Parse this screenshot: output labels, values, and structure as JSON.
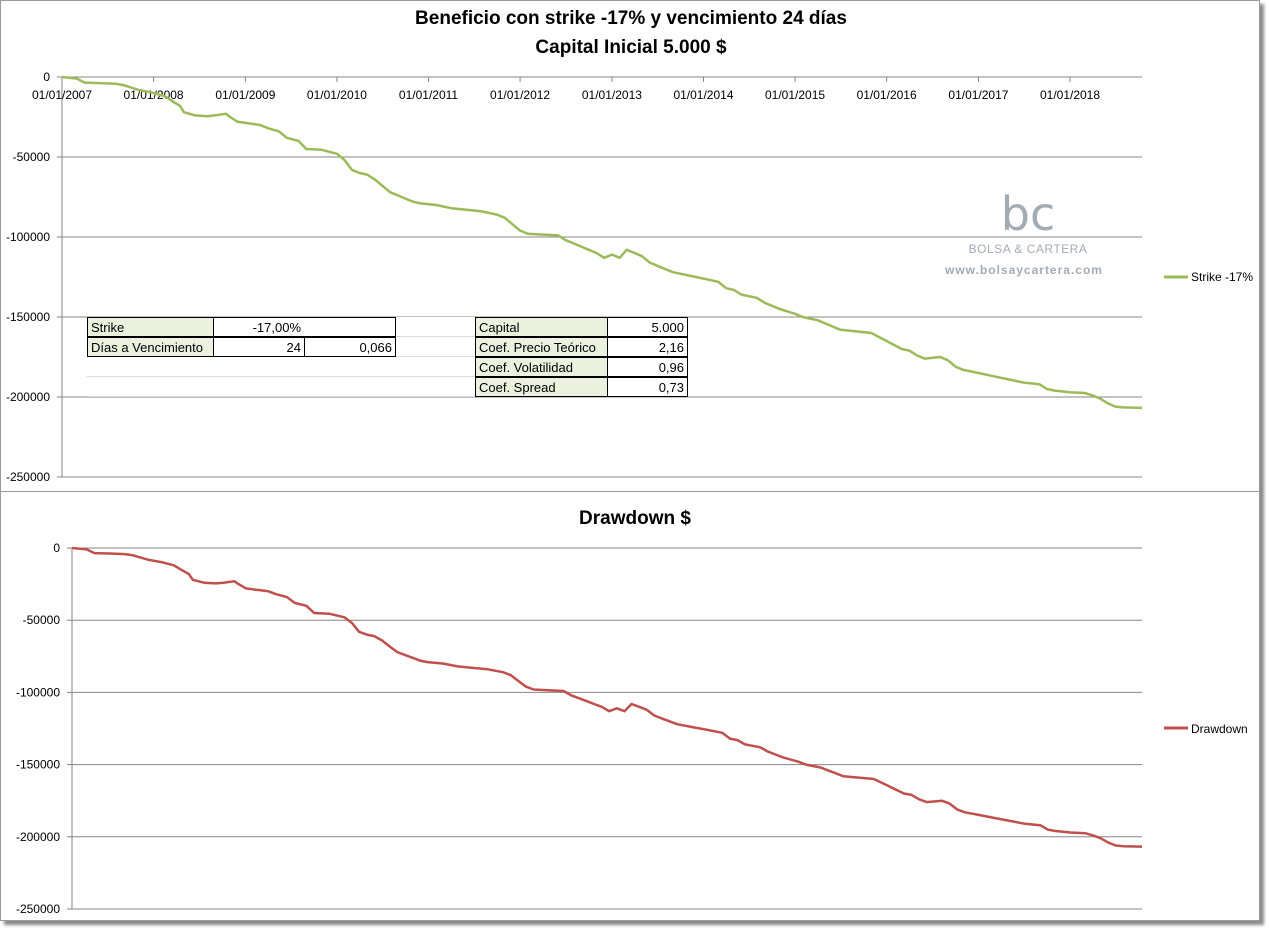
{
  "colors": {
    "strike_line": "#9bbb59",
    "drawdown_line": "#c0504d",
    "gridline": "#868686"
  },
  "chart_data": [
    {
      "type": "line",
      "title": "Beneficio con strike -17% y vencimiento 24 días",
      "subtitle": "Capital Inicial 5.000 $",
      "x_tick_labels": [
        "01/01/2007",
        "01/01/2008",
        "01/01/2009",
        "01/01/2010",
        "01/01/2011",
        "01/01/2012",
        "01/01/2013",
        "01/01/2014",
        "01/01/2015",
        "01/01/2016",
        "01/01/2017",
        "01/01/2018"
      ],
      "y_tick_labels": [
        "0",
        "-50000",
        "-100000",
        "-150000",
        "-200000",
        "-250000"
      ],
      "ylim": [
        -250000,
        0
      ],
      "xlim": [
        "2007-01-01",
        "2018-10-15"
      ],
      "grid": true,
      "legend_position": "right",
      "series": [
        {
          "name": "Strike -17%",
          "x": [
            "2007-01-01",
            "2007-03-01",
            "2007-04-01",
            "2007-06-01",
            "2007-08-01",
            "2007-09-01",
            "2007-11-01",
            "2008-01-01",
            "2008-02-15",
            "2008-03-15",
            "2008-04-15",
            "2008-05-01",
            "2008-06-15",
            "2008-08-01",
            "2008-09-01",
            "2008-10-15",
            "2008-11-01",
            "2008-12-01",
            "2009-01-15",
            "2009-03-01",
            "2009-04-01",
            "2009-05-15",
            "2009-06-15",
            "2009-08-01",
            "2009-09-01",
            "2009-11-01",
            "2010-01-01",
            "2010-02-01",
            "2010-03-01",
            "2010-04-01",
            "2010-05-01",
            "2010-06-01",
            "2010-07-01",
            "2010-08-01",
            "2010-09-01",
            "2010-10-01",
            "2010-11-01",
            "2010-12-01",
            "2011-02-01",
            "2011-04-01",
            "2011-06-01",
            "2011-08-01",
            "2011-10-01",
            "2011-11-01",
            "2011-12-01",
            "2012-01-01",
            "2012-02-01",
            "2012-04-01",
            "2012-06-01",
            "2012-07-01",
            "2012-08-01",
            "2012-09-01",
            "2012-10-01",
            "2012-11-01",
            "2012-12-01",
            "2013-01-01",
            "2013-02-01",
            "2013-03-01",
            "2013-04-01",
            "2013-05-01",
            "2013-06-01",
            "2013-07-01",
            "2013-09-01",
            "2013-11-01",
            "2014-01-01",
            "2014-03-01",
            "2014-04-01",
            "2014-05-01",
            "2014-06-01",
            "2014-07-01",
            "2014-08-01",
            "2014-09-01",
            "2014-10-01",
            "2014-11-01",
            "2015-01-01",
            "2015-02-01",
            "2015-03-01",
            "2015-04-01",
            "2015-05-01",
            "2015-06-01",
            "2015-07-01",
            "2015-09-01",
            "2015-11-01",
            "2016-01-01",
            "2016-03-01",
            "2016-04-01",
            "2016-05-01",
            "2016-06-01",
            "2016-08-01",
            "2016-09-01",
            "2016-10-01",
            "2016-11-01",
            "2016-12-01",
            "2017-01-01",
            "2017-03-01",
            "2017-05-01",
            "2017-07-01",
            "2017-08-01",
            "2017-09-01",
            "2017-10-01",
            "2017-11-01",
            "2018-01-01",
            "2018-03-01",
            "2018-04-01",
            "2018-05-01",
            "2018-06-01",
            "2018-07-01",
            "2018-08-01",
            "2018-10-15"
          ],
          "y": [
            0,
            -1000,
            -3500,
            -3800,
            -4200,
            -5000,
            -8000,
            -10000,
            -12000,
            -15000,
            -18000,
            -22000,
            -24000,
            -24500,
            -24000,
            -23000,
            -25000,
            -28000,
            -29000,
            -30000,
            -32000,
            -34000,
            -38000,
            -40000,
            -45000,
            -45500,
            -48000,
            -52000,
            -58000,
            -60000,
            -61000,
            -64000,
            -68000,
            -72000,
            -74000,
            -76000,
            -78000,
            -79000,
            -80000,
            -82000,
            -83000,
            -84000,
            -86000,
            -88000,
            -92000,
            -96000,
            -98000,
            -98500,
            -99000,
            -102000,
            -104000,
            -106000,
            -108000,
            -110000,
            -113000,
            -111000,
            -113000,
            -108000,
            -110000,
            -112000,
            -116000,
            -118000,
            -122000,
            -124000,
            -126000,
            -128000,
            -132000,
            -133000,
            -136000,
            -137000,
            -138000,
            -141000,
            -143000,
            -145000,
            -148000,
            -150000,
            -151000,
            -152000,
            -154000,
            -156000,
            -158000,
            -159000,
            -160000,
            -165000,
            -170000,
            -171000,
            -174000,
            -176000,
            -175000,
            -177000,
            -181000,
            -183000,
            -184000,
            -185000,
            -187000,
            -189000,
            -191000,
            -191500,
            -192000,
            -195000,
            -196000,
            -197000,
            -197500,
            -199000,
            -201000,
            -204000,
            -206000,
            -206500,
            -206800
          ]
        }
      ]
    },
    {
      "type": "line",
      "title": "Drawdown $",
      "y_tick_labels": [
        "0",
        "-50000",
        "-100000",
        "-150000",
        "-200000",
        "-250000"
      ],
      "ylim": [
        -250000,
        0
      ],
      "xlim": [
        "2007-01-01",
        "2018-10-15"
      ],
      "grid": true,
      "legend_position": "right",
      "series": [
        {
          "name": "Drawdown",
          "x": [
            "2007-01-01",
            "2007-03-01",
            "2007-04-01",
            "2007-06-01",
            "2007-08-01",
            "2007-09-01",
            "2007-11-01",
            "2008-01-01",
            "2008-02-15",
            "2008-03-15",
            "2008-04-15",
            "2008-05-01",
            "2008-06-15",
            "2008-08-01",
            "2008-09-01",
            "2008-10-15",
            "2008-11-01",
            "2008-12-01",
            "2009-01-15",
            "2009-03-01",
            "2009-04-01",
            "2009-05-15",
            "2009-06-15",
            "2009-08-01",
            "2009-09-01",
            "2009-11-01",
            "2010-01-01",
            "2010-02-01",
            "2010-03-01",
            "2010-04-01",
            "2010-05-01",
            "2010-06-01",
            "2010-07-01",
            "2010-08-01",
            "2010-09-01",
            "2010-10-01",
            "2010-11-01",
            "2010-12-01",
            "2011-02-01",
            "2011-04-01",
            "2011-06-01",
            "2011-08-01",
            "2011-10-01",
            "2011-11-01",
            "2011-12-01",
            "2012-01-01",
            "2012-02-01",
            "2012-04-01",
            "2012-06-01",
            "2012-07-01",
            "2012-08-01",
            "2012-09-01",
            "2012-10-01",
            "2012-11-01",
            "2012-12-01",
            "2013-01-01",
            "2013-02-01",
            "2013-03-01",
            "2013-04-01",
            "2013-05-01",
            "2013-06-01",
            "2013-07-01",
            "2013-09-01",
            "2013-11-01",
            "2014-01-01",
            "2014-03-01",
            "2014-04-01",
            "2014-05-01",
            "2014-06-01",
            "2014-07-01",
            "2014-08-01",
            "2014-09-01",
            "2014-10-01",
            "2014-11-01",
            "2015-01-01",
            "2015-02-01",
            "2015-03-01",
            "2015-04-01",
            "2015-05-01",
            "2015-06-01",
            "2015-07-01",
            "2015-09-01",
            "2015-11-01",
            "2016-01-01",
            "2016-03-01",
            "2016-04-01",
            "2016-05-01",
            "2016-06-01",
            "2016-08-01",
            "2016-09-01",
            "2016-10-01",
            "2016-11-01",
            "2016-12-01",
            "2017-01-01",
            "2017-03-01",
            "2017-05-01",
            "2017-07-01",
            "2017-08-01",
            "2017-09-01",
            "2017-10-01",
            "2017-11-01",
            "2018-01-01",
            "2018-03-01",
            "2018-04-01",
            "2018-05-01",
            "2018-06-01",
            "2018-07-01",
            "2018-08-01",
            "2018-10-15"
          ],
          "y": [
            0,
            -1000,
            -3500,
            -3800,
            -4200,
            -5000,
            -8000,
            -10000,
            -12000,
            -15000,
            -18000,
            -22000,
            -24000,
            -24500,
            -24000,
            -23000,
            -25000,
            -28000,
            -29000,
            -30000,
            -32000,
            -34000,
            -38000,
            -40000,
            -45000,
            -45500,
            -48000,
            -52000,
            -58000,
            -60000,
            -61000,
            -64000,
            -68000,
            -72000,
            -74000,
            -76000,
            -78000,
            -79000,
            -80000,
            -82000,
            -83000,
            -84000,
            -86000,
            -88000,
            -92000,
            -96000,
            -98000,
            -98500,
            -99000,
            -102000,
            -104000,
            -106000,
            -108000,
            -110000,
            -113000,
            -111000,
            -113000,
            -108000,
            -110000,
            -112000,
            -116000,
            -118000,
            -122000,
            -124000,
            -126000,
            -128000,
            -132000,
            -133000,
            -136000,
            -137000,
            -138000,
            -141000,
            -143000,
            -145000,
            -148000,
            -150000,
            -151000,
            -152000,
            -154000,
            -156000,
            -158000,
            -159000,
            -160000,
            -165000,
            -170000,
            -171000,
            -174000,
            -176000,
            -175000,
            -177000,
            -181000,
            -183000,
            -184000,
            -185000,
            -187000,
            -189000,
            -191000,
            -191500,
            -192000,
            -195000,
            -196000,
            -197000,
            -197500,
            -199000,
            -201000,
            -204000,
            -206000,
            -206500,
            -206800
          ]
        }
      ]
    }
  ],
  "parameters_table_left": [
    {
      "label": "Strike",
      "value": "-17,00%",
      "extra": ""
    },
    {
      "label": "Días a Vencimiento",
      "value": "24",
      "extra": "0,066"
    }
  ],
  "parameters_table_right": [
    {
      "label": "Capital",
      "value": "5.000"
    },
    {
      "label": "Coef. Precio Teórico",
      "value": "2,16"
    },
    {
      "label": "Coef. Volatilidad",
      "value": "0,96"
    },
    {
      "label": "Coef. Spread",
      "value": "0,73"
    }
  ],
  "watermark": {
    "logo_letters": "bc",
    "brand": "BOLSA & CARTERA",
    "url": "www.bolsaycartera.com"
  }
}
